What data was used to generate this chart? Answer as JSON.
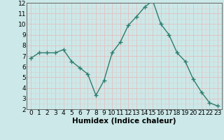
{
  "x": [
    0,
    1,
    2,
    3,
    4,
    5,
    6,
    7,
    8,
    9,
    10,
    11,
    12,
    13,
    14,
    15,
    16,
    17,
    18,
    19,
    20,
    21,
    22,
    23
  ],
  "y": [
    6.8,
    7.3,
    7.3,
    7.3,
    7.6,
    6.5,
    5.9,
    5.3,
    3.3,
    4.7,
    7.3,
    8.3,
    9.9,
    10.7,
    11.6,
    12.2,
    10.0,
    9.0,
    7.3,
    6.5,
    4.8,
    3.6,
    2.6,
    2.3
  ],
  "line_color": "#2e7d6e",
  "marker": "+",
  "marker_size": 4,
  "xlabel": "Humidex (Indice chaleur)",
  "xlim": [
    -0.5,
    23.5
  ],
  "ylim": [
    2,
    12
  ],
  "yticks": [
    2,
    3,
    4,
    5,
    6,
    7,
    8,
    9,
    10,
    11,
    12
  ],
  "xticks": [
    0,
    1,
    2,
    3,
    4,
    5,
    6,
    7,
    8,
    9,
    10,
    11,
    12,
    13,
    14,
    15,
    16,
    17,
    18,
    19,
    20,
    21,
    22,
    23
  ],
  "bg_color": "#cce8e8",
  "grid_major_color": "#e8b8b8",
  "grid_minor_color": "#ddd0d0",
  "tick_fontsize": 6.5,
  "xlabel_fontsize": 7.5,
  "line_width": 1.0,
  "marker_edge_width": 1.0
}
